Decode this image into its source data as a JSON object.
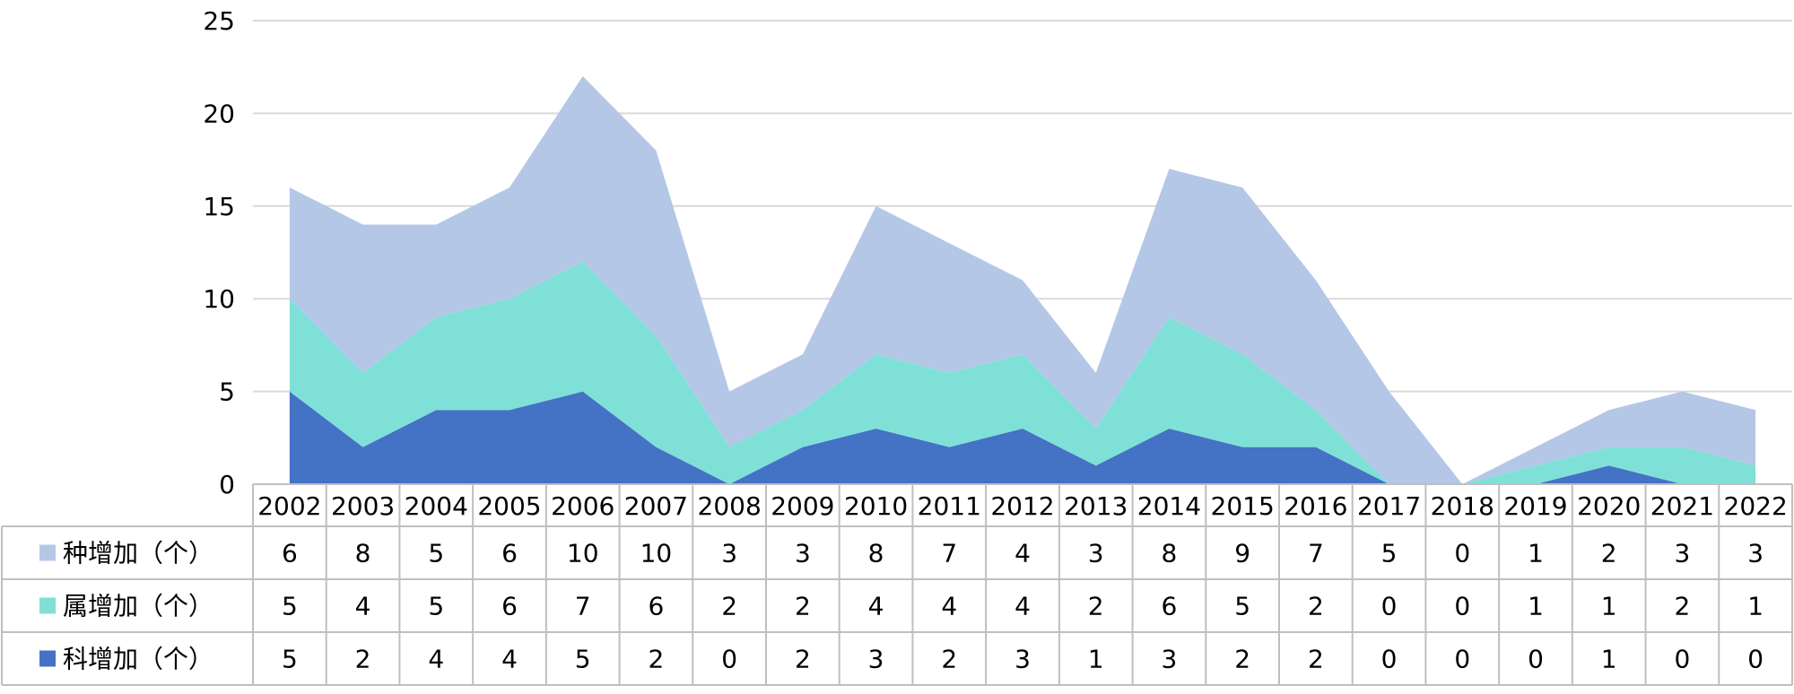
{
  "chart_data": {
    "type": "area",
    "stacked": true,
    "categories": [
      "2002",
      "2003",
      "2004",
      "2005",
      "2006",
      "2007",
      "2008",
      "2009",
      "2010",
      "2011",
      "2012",
      "2013",
      "2014",
      "2015",
      "2016",
      "2017",
      "2018",
      "2019",
      "2020",
      "2021",
      "2022"
    ],
    "ylim": [
      0,
      25
    ],
    "yticks": [
      "0",
      "5",
      "10",
      "15",
      "20",
      "25"
    ],
    "grid": true,
    "legend_position": "data-table-left",
    "series": [
      {
        "name": "科增加（个）",
        "color": "#4472C4",
        "values": [
          5,
          2,
          4,
          4,
          5,
          2,
          0,
          2,
          3,
          2,
          3,
          1,
          3,
          2,
          2,
          0,
          0,
          0,
          1,
          0,
          0
        ]
      },
      {
        "name": "属增加（个）",
        "color": "#7FE0D8",
        "values": [
          5,
          4,
          5,
          6,
          7,
          6,
          2,
          2,
          4,
          4,
          4,
          2,
          6,
          5,
          2,
          0,
          0,
          1,
          1,
          2,
          1
        ]
      },
      {
        "name": "种增加（个）",
        "color": "#B4C7E7",
        "values": [
          6,
          8,
          5,
          6,
          10,
          10,
          3,
          3,
          8,
          7,
          4,
          3,
          8,
          9,
          7,
          5,
          0,
          1,
          2,
          3,
          3
        ]
      }
    ],
    "table_row_order": [
      2,
      1,
      0
    ]
  }
}
